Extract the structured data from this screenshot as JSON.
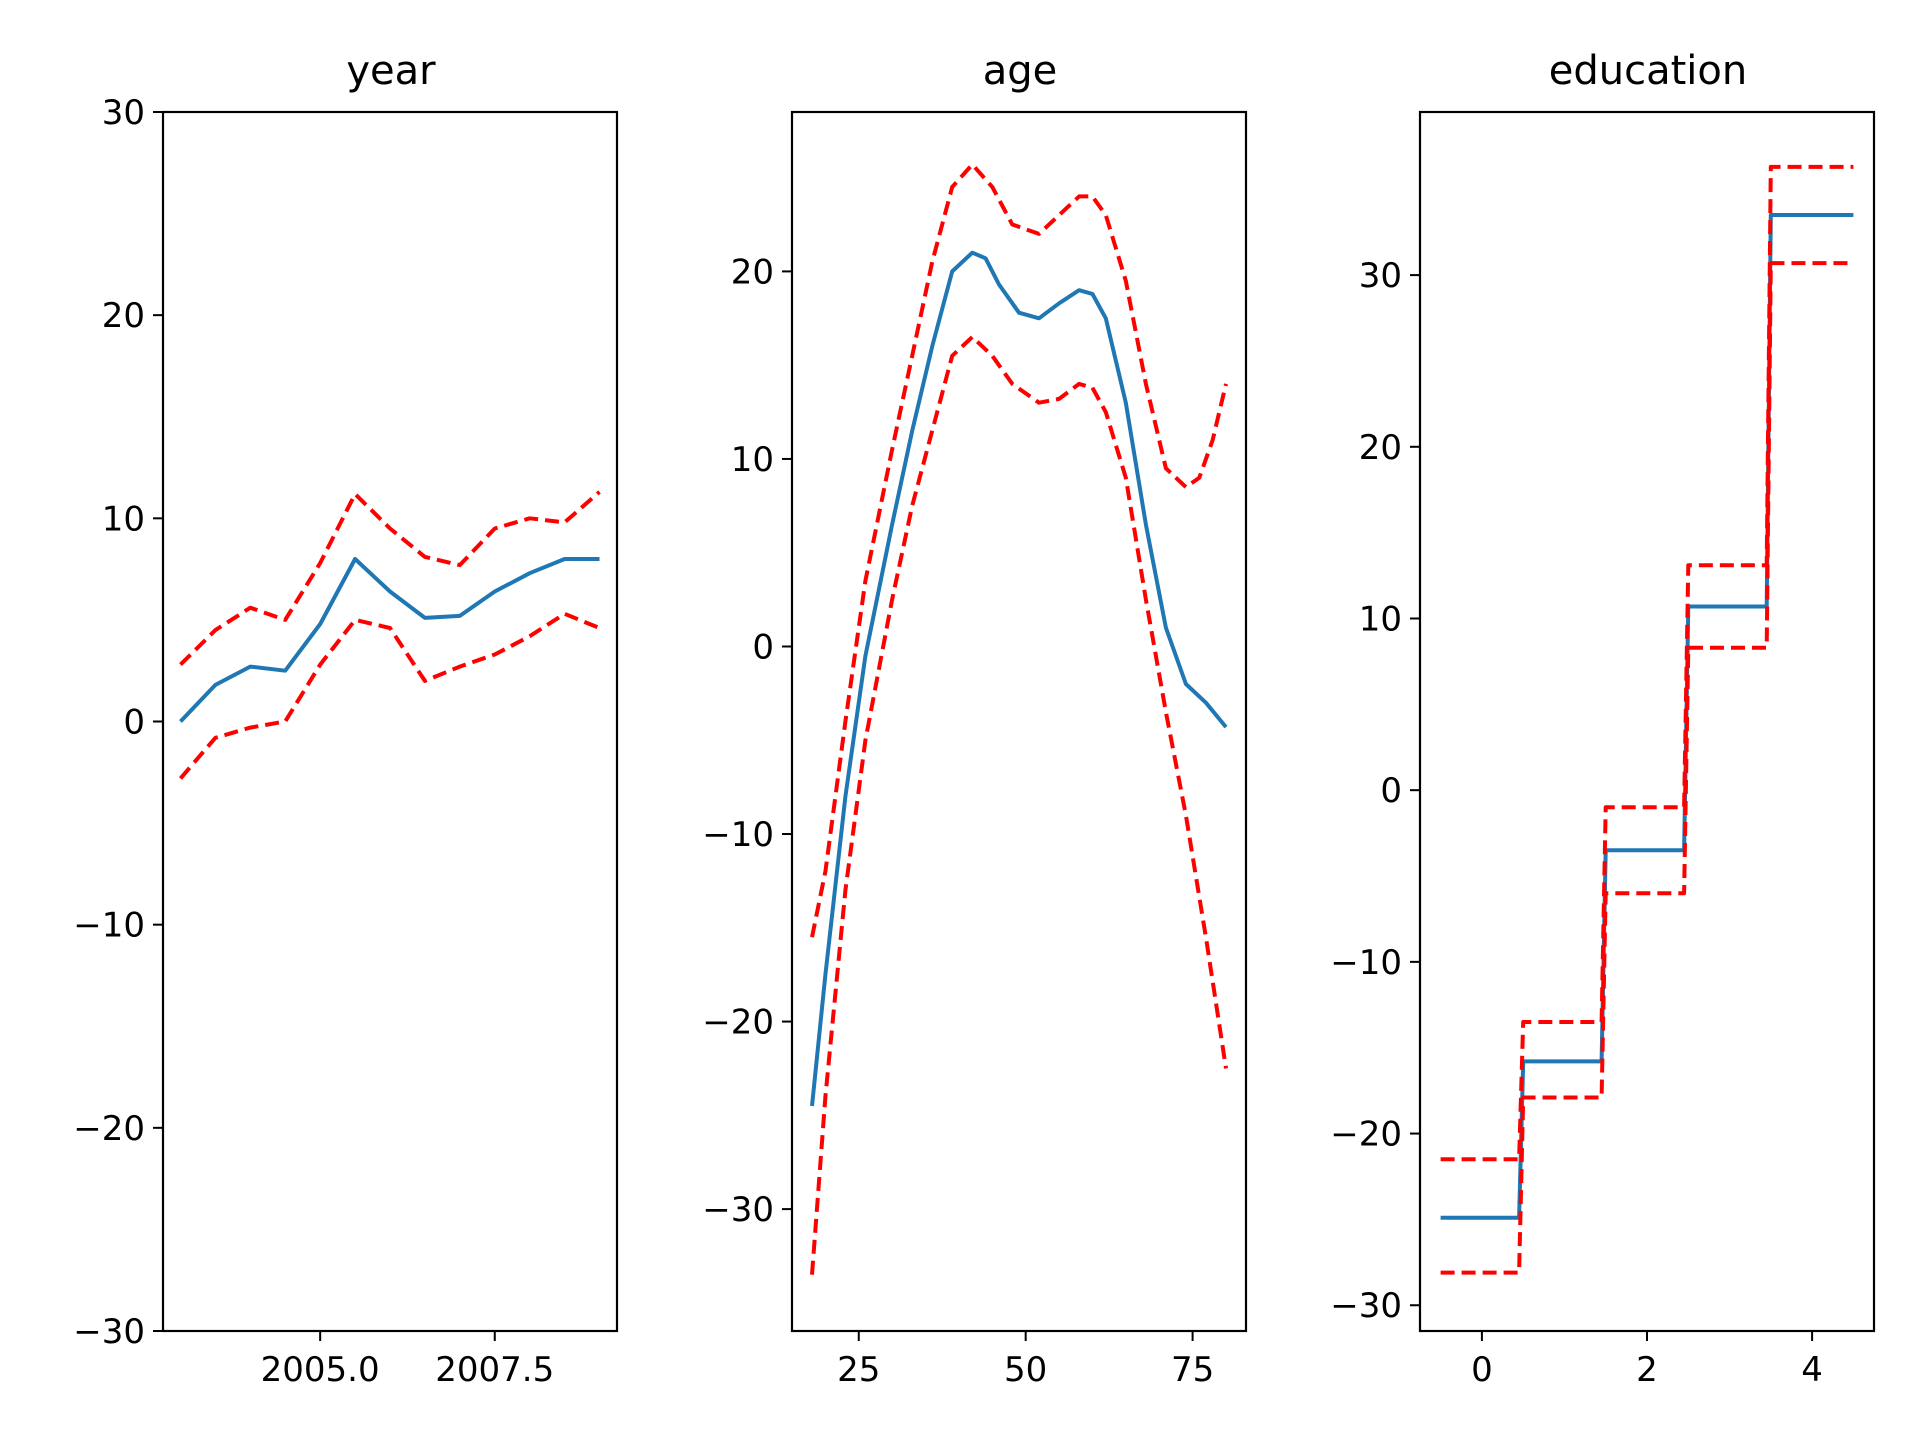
{
  "chart_data": [
    {
      "type": "line",
      "title": "year",
      "xlim": [
        2002.75,
        2009.25
      ],
      "ylim": [
        -30,
        30
      ],
      "xticks": [
        2005.0,
        2007.5
      ],
      "xtick_labels": [
        "2005.0",
        "2007.5"
      ],
      "yticks": [
        -30,
        -20,
        -10,
        0,
        10,
        20,
        30
      ],
      "ytick_labels": [
        "−30",
        "−20",
        "−10",
        "0",
        "10",
        "20",
        "30"
      ],
      "series": [
        {
          "role": "estimate",
          "color": "#1f77b4",
          "style": "solid",
          "x": [
            2003.0,
            2003.5,
            2004.0,
            2004.5,
            2005.0,
            2005.5,
            2006.0,
            2006.5,
            2007.0,
            2007.5,
            2008.0,
            2008.5,
            2009.0
          ],
          "y": [
            0.0,
            1.8,
            2.7,
            2.5,
            4.8,
            8.0,
            6.4,
            5.1,
            5.2,
            6.4,
            7.3,
            8.0,
            8.0
          ]
        },
        {
          "role": "upper",
          "color": "#ff0000",
          "style": "dashed",
          "x": [
            2003.0,
            2003.5,
            2004.0,
            2004.5,
            2005.0,
            2005.5,
            2006.0,
            2006.5,
            2007.0,
            2007.5,
            2008.0,
            2008.5,
            2009.0
          ],
          "y": [
            2.8,
            4.5,
            5.6,
            5.0,
            7.8,
            11.2,
            9.5,
            8.1,
            7.7,
            9.5,
            10.0,
            9.8,
            11.3
          ]
        },
        {
          "role": "lower",
          "color": "#ff0000",
          "style": "dashed",
          "x": [
            2003.0,
            2003.5,
            2004.0,
            2004.5,
            2005.0,
            2005.5,
            2006.0,
            2006.5,
            2007.0,
            2007.5,
            2008.0,
            2008.5,
            2009.0
          ],
          "y": [
            -2.8,
            -0.8,
            -0.3,
            0.0,
            2.8,
            5.0,
            4.6,
            2.0,
            2.7,
            3.3,
            4.2,
            5.3,
            4.6
          ]
        }
      ]
    },
    {
      "type": "line",
      "title": "age",
      "xlim": [
        15,
        83
      ],
      "ylim": [
        -36.5,
        28.5
      ],
      "xticks": [
        25,
        50,
        75
      ],
      "xtick_labels": [
        "25",
        "50",
        "75"
      ],
      "yticks": [
        -30,
        -20,
        -10,
        0,
        10,
        20
      ],
      "ytick_labels": [
        "−30",
        "−20",
        "−10",
        "0",
        "10",
        "20"
      ],
      "series": [
        {
          "role": "estimate",
          "color": "#1f77b4",
          "style": "solid",
          "x": [
            18,
            20,
            23,
            26,
            30,
            33,
            36,
            39,
            42,
            44,
            46,
            49,
            52,
            55,
            58,
            60,
            62,
            65,
            68,
            71,
            74,
            77,
            80
          ],
          "y": [
            -24.5,
            -17.5,
            -8.0,
            -0.5,
            6.5,
            11.5,
            16.0,
            20.0,
            21.0,
            20.7,
            19.3,
            17.8,
            17.5,
            18.3,
            19.0,
            18.8,
            17.5,
            13.0,
            6.5,
            1.0,
            -2.0,
            -3.0,
            -4.3
          ]
        },
        {
          "role": "upper",
          "color": "#ff0000",
          "style": "dashed",
          "x": [
            18,
            20,
            23,
            26,
            30,
            33,
            36,
            39,
            42,
            45,
            48,
            52,
            55,
            58,
            60,
            62,
            65,
            68,
            71,
            74,
            76,
            78,
            80
          ],
          "y": [
            -15.5,
            -12.0,
            -4.0,
            3.5,
            10.5,
            15.5,
            20.5,
            24.5,
            25.7,
            24.5,
            22.5,
            22.0,
            23.0,
            24.0,
            24.0,
            23.0,
            19.5,
            14.0,
            9.5,
            8.5,
            9.0,
            11.0,
            14.0
          ]
        },
        {
          "role": "lower",
          "color": "#ff0000",
          "style": "dashed",
          "x": [
            18,
            20,
            23,
            26,
            30,
            33,
            36,
            39,
            42,
            45,
            48,
            52,
            55,
            58,
            60,
            62,
            65,
            68,
            71,
            74,
            77,
            80
          ],
          "y": [
            -33.5,
            -24.0,
            -13.0,
            -5.0,
            2.5,
            7.5,
            11.5,
            15.5,
            16.5,
            15.5,
            14.0,
            13.0,
            13.2,
            14.0,
            13.8,
            12.5,
            9.0,
            2.5,
            -3.5,
            -9.0,
            -15.5,
            -22.5
          ]
        }
      ]
    },
    {
      "type": "line",
      "title": "education",
      "xlim": [
        -0.75,
        4.75
      ],
      "ylim": [
        -31.5,
        39.5
      ],
      "xticks": [
        0,
        2,
        4
      ],
      "xtick_labels": [
        "0",
        "2",
        "4"
      ],
      "yticks": [
        -30,
        -20,
        -10,
        0,
        10,
        20,
        30
      ],
      "ytick_labels": [
        "−30",
        "−20",
        "−10",
        "0",
        "10",
        "20",
        "30"
      ],
      "series": [
        {
          "role": "estimate",
          "color": "#1f77b4",
          "style": "solid",
          "x": [
            -0.5,
            0.45,
            0.5,
            1.45,
            1.5,
            2.45,
            2.5,
            3.45,
            3.5,
            4.5
          ],
          "y": [
            -24.9,
            -24.9,
            -15.8,
            -15.8,
            -3.5,
            -3.5,
            10.7,
            10.7,
            33.5,
            33.5
          ]
        },
        {
          "role": "upper",
          "color": "#ff0000",
          "style": "dashed",
          "x": [
            -0.5,
            0.45,
            0.5,
            1.45,
            1.5,
            2.45,
            2.5,
            3.45,
            3.5,
            4.5
          ],
          "y": [
            -21.5,
            -21.5,
            -13.5,
            -13.5,
            -1.0,
            -1.0,
            13.1,
            13.1,
            36.3,
            36.3
          ]
        },
        {
          "role": "lower",
          "color": "#ff0000",
          "style": "dashed",
          "x": [
            -0.5,
            0.45,
            0.5,
            1.45,
            1.5,
            2.45,
            2.5,
            3.45,
            3.5,
            4.5
          ],
          "y": [
            -28.1,
            -28.1,
            -17.9,
            -17.9,
            -6.0,
            -6.0,
            8.3,
            8.3,
            30.7,
            30.7
          ]
        }
      ]
    }
  ]
}
